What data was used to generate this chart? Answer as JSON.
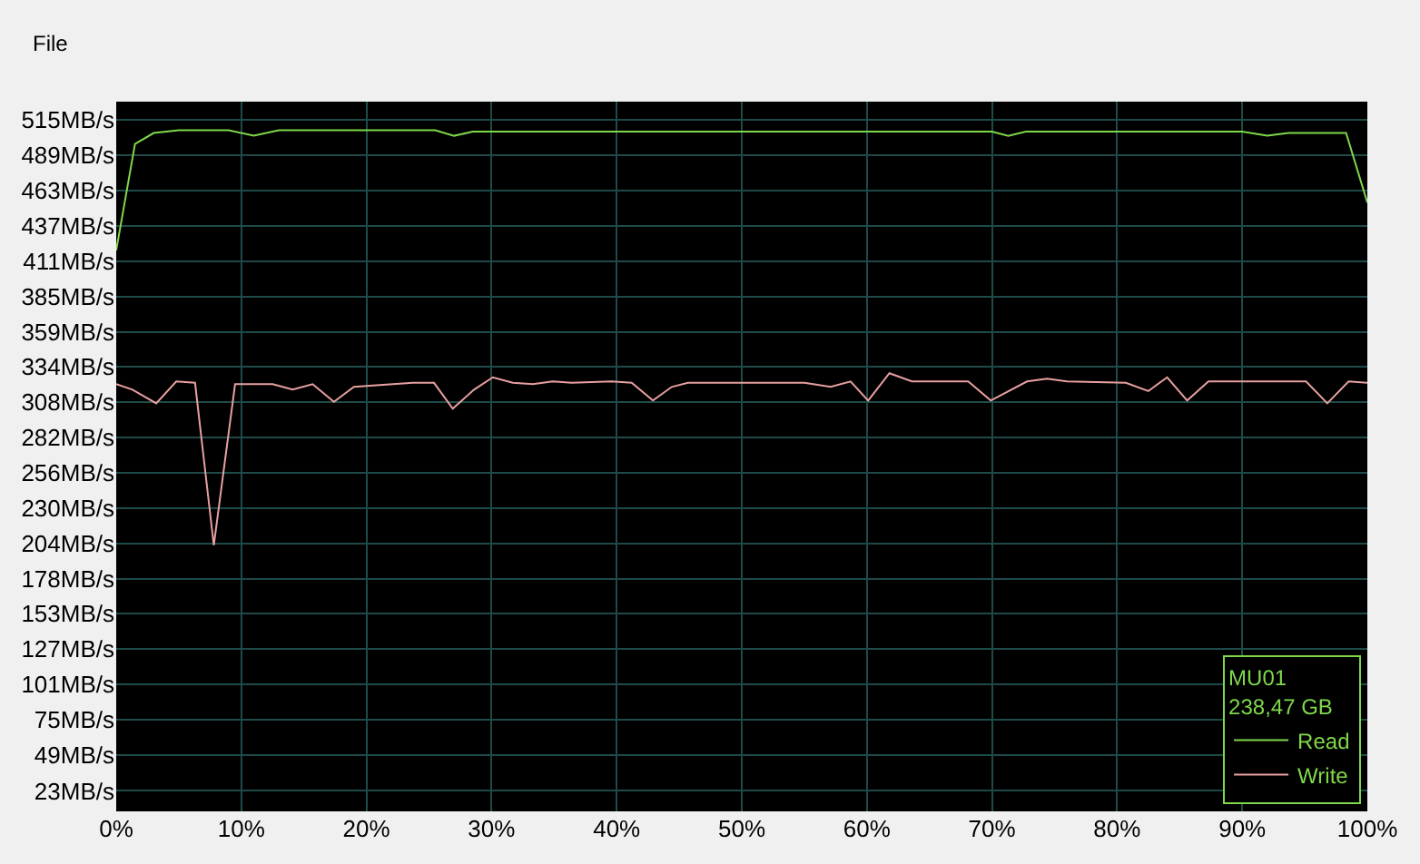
{
  "chart_data": {
    "type": "line",
    "xlim": [
      0,
      100
    ],
    "xticks": [
      {
        "value": 0,
        "label": "0%"
      },
      {
        "value": 10,
        "label": "10%"
      },
      {
        "value": 20,
        "label": "20%"
      },
      {
        "value": 30,
        "label": "30%"
      },
      {
        "value": 40,
        "label": "40%"
      },
      {
        "value": 50,
        "label": "50%"
      },
      {
        "value": 60,
        "label": "60%"
      },
      {
        "value": 70,
        "label": "70%"
      },
      {
        "value": 80,
        "label": "80%"
      },
      {
        "value": 90,
        "label": "90%"
      },
      {
        "value": 100,
        "label": "100%"
      }
    ],
    "ylim": [
      8,
      528
    ],
    "yticks": [
      {
        "value": 23,
        "label": "23MB/s"
      },
      {
        "value": 49,
        "label": "49MB/s"
      },
      {
        "value": 75,
        "label": "75MB/s"
      },
      {
        "value": 101,
        "label": "101MB/s"
      },
      {
        "value": 127,
        "label": "127MB/s"
      },
      {
        "value": 153,
        "label": "153MB/s"
      },
      {
        "value": 178,
        "label": "178MB/s"
      },
      {
        "value": 204,
        "label": "204MB/s"
      },
      {
        "value": 230,
        "label": "230MB/s"
      },
      {
        "value": 256,
        "label": "256MB/s"
      },
      {
        "value": 282,
        "label": "282MB/s"
      },
      {
        "value": 308,
        "label": "308MB/s"
      },
      {
        "value": 334,
        "label": "334MB/s"
      },
      {
        "value": 359,
        "label": "359MB/s"
      },
      {
        "value": 385,
        "label": "385MB/s"
      },
      {
        "value": 411,
        "label": "411MB/s"
      },
      {
        "value": 437,
        "label": "437MB/s"
      },
      {
        "value": 463,
        "label": "463MB/s"
      },
      {
        "value": 489,
        "label": "489MB/s"
      },
      {
        "value": 515,
        "label": "515MB/s"
      }
    ],
    "grid": true,
    "legend": "bottom right",
    "legend_title": "MU01\n238,47 GB",
    "annotations": [
      "File"
    ],
    "series": [
      {
        "name": "Read",
        "color": "#7fd84a",
        "x": [
          0,
          1.5,
          3,
          5,
          9,
          11,
          13,
          25.5,
          27,
          28.5,
          70,
          71.3,
          72.7,
          90,
          92,
          93.7,
          98.3,
          100
        ],
        "values": [
          419,
          497,
          505,
          507,
          507,
          503,
          507,
          507,
          503,
          506,
          506,
          503,
          506,
          506,
          503,
          505,
          505,
          454
        ]
      },
      {
        "name": "Write",
        "color": "#e8a0a0",
        "x": [
          0,
          1.3,
          3.2,
          4.8,
          6.3,
          7.8,
          9.5,
          12.5,
          14.1,
          15.7,
          17.4,
          19,
          23.7,
          25.4,
          26.9,
          28.6,
          30.1,
          31.7,
          33.3,
          34.9,
          36.4,
          39.6,
          41.2,
          42.9,
          44.4,
          45.7,
          55,
          57.1,
          58.7,
          60.1,
          61.8,
          63.6,
          68.1,
          69.9,
          72.8,
          74.4,
          76,
          80.7,
          82.5,
          84,
          85.6,
          87.3,
          90,
          95.1,
          96.8,
          98.5,
          100
        ],
        "values": [
          321,
          317,
          307,
          323,
          322,
          203,
          321,
          321,
          317,
          321,
          308,
          319,
          322,
          322,
          303,
          317,
          326,
          322,
          321,
          323,
          322,
          323,
          322,
          309,
          319,
          322,
          322,
          319,
          323,
          309,
          329,
          323,
          323,
          309,
          323,
          325,
          323,
          322,
          316,
          326,
          309,
          323,
          323,
          323,
          307,
          323,
          322
        ]
      }
    ]
  }
}
